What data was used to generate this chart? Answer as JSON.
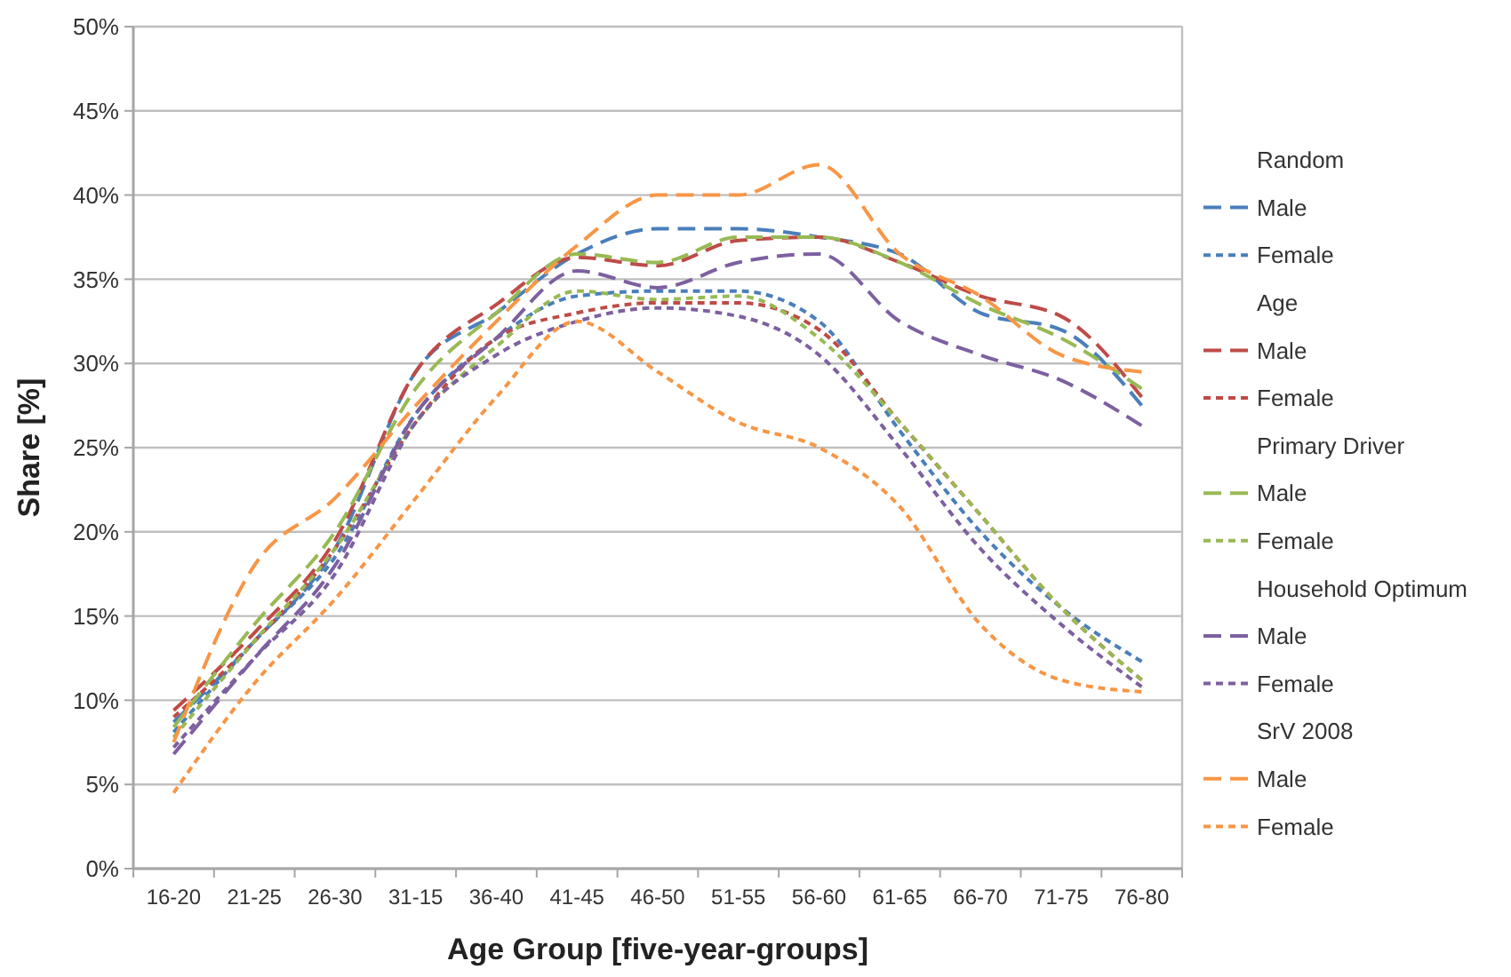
{
  "chart_data": {
    "type": "line",
    "xlabel": "Age Group [five-year-groups]",
    "ylabel": "Share [%]",
    "categories": [
      "16-20",
      "21-25",
      "26-30",
      "31-15",
      "36-40",
      "41-45",
      "46-50",
      "51-55",
      "56-60",
      "61-65",
      "66-70",
      "71-75",
      "76-80"
    ],
    "ylim": [
      0,
      50
    ],
    "yticks": [
      {
        "value": 0,
        "label": "0%"
      },
      {
        "value": 5,
        "label": "5%"
      },
      {
        "value": 10,
        "label": "10%"
      },
      {
        "value": 15,
        "label": "15%"
      },
      {
        "value": 20,
        "label": "20%"
      },
      {
        "value": 25,
        "label": "25%"
      },
      {
        "value": 30,
        "label": "30%"
      },
      {
        "value": 35,
        "label": "35%"
      },
      {
        "value": 40,
        "label": "40%"
      },
      {
        "value": 45,
        "label": "45%"
      },
      {
        "value": 50,
        "label": "50%"
      }
    ],
    "grid": "y",
    "legend": "right",
    "marker": "none",
    "annotations": [
      "Random",
      "Age",
      "Primary Driver",
      "Household Optimum",
      "SrV 2008"
    ],
    "series": [
      {
        "name": "Male",
        "color": "#4a7ebb",
        "line_style": "dashed",
        "values": [
          8.7,
          13.5,
          19,
          29.5,
          33,
          36.5,
          38,
          38,
          37.5,
          36.5,
          33,
          32,
          27.5
        ]
      },
      {
        "name": "Female",
        "color": "#4a7ebb",
        "line_style": "dotted",
        "values": [
          8.1,
          13.5,
          18.5,
          27,
          31.5,
          34,
          34.3,
          34.3,
          32.5,
          26,
          20,
          15.5,
          12.3
        ]
      },
      {
        "name": "Male",
        "color": "#be4b48",
        "line_style": "dashed",
        "values": [
          9.4,
          14,
          19.5,
          29.5,
          33.5,
          36.3,
          35.8,
          37.3,
          37.5,
          36,
          34,
          32.8,
          28
        ]
      },
      {
        "name": "Female",
        "color": "#be4b48",
        "line_style": "dotted",
        "values": [
          9,
          13.5,
          19,
          26.5,
          31.5,
          33,
          33.6,
          33.6,
          32,
          26.5,
          21,
          15.5,
          11.2
        ]
      },
      {
        "name": "Male",
        "color": "#98b954",
        "line_style": "dashed",
        "values": [
          8.4,
          14.5,
          20,
          28.5,
          33,
          36.5,
          36,
          37.5,
          37.5,
          36,
          33.5,
          31.5,
          28.5
        ]
      },
      {
        "name": "Female",
        "color": "#98b954",
        "line_style": "dotted",
        "values": [
          7.8,
          13.5,
          19,
          26.5,
          31,
          34.3,
          33.8,
          34,
          31.5,
          26.5,
          21,
          15.5,
          11.2
        ]
      },
      {
        "name": "Male",
        "color": "#7d60a0",
        "line_style": "dashed",
        "values": [
          6.8,
          12.5,
          18,
          27,
          31.5,
          35.5,
          34.5,
          36,
          36.5,
          32.5,
          30.5,
          29,
          26.3
        ]
      },
      {
        "name": "Female",
        "color": "#7d60a0",
        "line_style": "dotted",
        "values": [
          7.2,
          12.5,
          17.5,
          26.5,
          30.5,
          32.5,
          33.3,
          32.8,
          30.5,
          25,
          19,
          14.5,
          10.8
        ]
      },
      {
        "name": "Male",
        "color": "#f79646",
        "line_style": "dashed",
        "values": [
          7.5,
          18,
          22,
          27.5,
          32.5,
          37,
          40,
          40,
          41.8,
          36.5,
          34,
          30.5,
          29.5
        ]
      },
      {
        "name": "Female",
        "color": "#f79646",
        "line_style": "dotted",
        "values": [
          4.5,
          11,
          16,
          22,
          28,
          32.5,
          29.5,
          26.5,
          25,
          21.5,
          14.5,
          11.2,
          10.5
        ]
      }
    ]
  }
}
